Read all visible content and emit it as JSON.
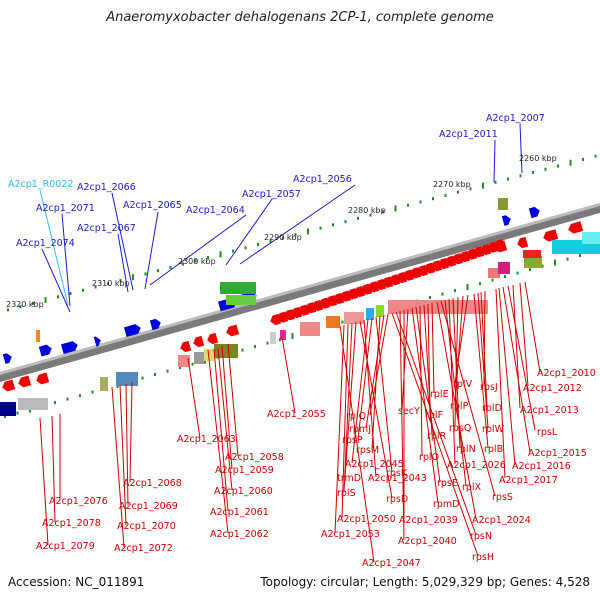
{
  "title": "Anaeromyxobacter dehalogenans 2CP-1, complete genome",
  "accession": "Accession: NC_011891",
  "summary": "Topology: circular; Length: 5,029,329 bp; Genes: 4,528",
  "scale": [
    {
      "label": "2260 kbp"
    },
    {
      "label": "2270 kbp"
    },
    {
      "label": "2280 kbp"
    },
    {
      "label": "2290 kbp"
    },
    {
      "label": "2300 kbp"
    },
    {
      "label": "2310 kbp"
    },
    {
      "label": "2320 kbp"
    }
  ],
  "upper_labels": [
    {
      "text": "A2cp1_2007",
      "color": "#1a1acc"
    },
    {
      "text": "A2cp1_2011",
      "color": "#1a1acc"
    },
    {
      "text": "A2cp1_2056",
      "color": "#1a1acc"
    },
    {
      "text": "A2cp1_2057",
      "color": "#1a1acc"
    },
    {
      "text": "A2cp1_2064",
      "color": "#1a1acc"
    },
    {
      "text": "A2cp1_2065",
      "color": "#1a1acc"
    },
    {
      "text": "A2cp1_2066",
      "color": "#1a1acc"
    },
    {
      "text": "A2cp1_2067",
      "color": "#1a1acc"
    },
    {
      "text": "A2cp1_R0022",
      "color": "#33bbee"
    },
    {
      "text": "A2cp1_2071",
      "color": "#1a1acc"
    },
    {
      "text": "A2cp1_2074",
      "color": "#1a1acc"
    }
  ],
  "lower_labels": [
    {
      "text": "A2cp1_2010"
    },
    {
      "text": "A2cp1_2012"
    },
    {
      "text": "A2cp1_2013"
    },
    {
      "text": "rpsL"
    },
    {
      "text": "A2cp1_2015"
    },
    {
      "text": "A2cp1_2016"
    },
    {
      "text": "A2cp1_2017"
    },
    {
      "text": "rpsJ"
    },
    {
      "text": "rplD"
    },
    {
      "text": "rplW"
    },
    {
      "text": "rplB"
    },
    {
      "text": "rplV"
    },
    {
      "text": "rplP"
    },
    {
      "text": "rpsQ"
    },
    {
      "text": "rplN"
    },
    {
      "text": "A2cp1_2026"
    },
    {
      "text": "rplX"
    },
    {
      "text": "rpsS"
    },
    {
      "text": "A2cp1_2024"
    },
    {
      "text": "rplE"
    },
    {
      "text": "rplF"
    },
    {
      "text": "rplR"
    },
    {
      "text": "rplO"
    },
    {
      "text": "rpsE"
    },
    {
      "text": "rpmD"
    },
    {
      "text": "secY"
    },
    {
      "text": "A2cp1_2039"
    },
    {
      "text": "A2cp1_2040"
    },
    {
      "text": "rpsN"
    },
    {
      "text": "rpsH"
    },
    {
      "text": "rplQ"
    },
    {
      "text": "rpmJ"
    },
    {
      "text": "rpsM"
    },
    {
      "text": "rpsK"
    },
    {
      "text": "rpsP"
    },
    {
      "text": "A2cp1_2045"
    },
    {
      "text": "A2cp1_2043"
    },
    {
      "text": "rpsD"
    },
    {
      "text": "trmD"
    },
    {
      "text": "rplS"
    },
    {
      "text": "A2cp1_2050"
    },
    {
      "text": "A2cp1_2053"
    },
    {
      "text": "A2cp1_2047"
    },
    {
      "text": "A2cp1_2055"
    },
    {
      "text": "A2cp1_2063"
    },
    {
      "text": "A2cp1_2058"
    },
    {
      "text": "A2cp1_2059"
    },
    {
      "text": "A2cp1_2060"
    },
    {
      "text": "A2cp1_2061"
    },
    {
      "text": "A2cp1_2062"
    },
    {
      "text": "A2cp1_2068"
    },
    {
      "text": "A2cp1_2069"
    },
    {
      "text": "A2cp1_2070"
    },
    {
      "text": "A2cp1_2072"
    },
    {
      "text": "A2cp1_2076"
    },
    {
      "text": "A2cp1_2078"
    },
    {
      "text": "A2cp1_2079"
    }
  ],
  "colors": {
    "label_forward": "#1a1acc",
    "label_rna": "#33bbee",
    "label_reverse": "#cc0000",
    "gene_forward": "#0000dd",
    "gene_reverse": "#ee0000",
    "backbone": "#888888",
    "scale_ticks": "#228822"
  }
}
